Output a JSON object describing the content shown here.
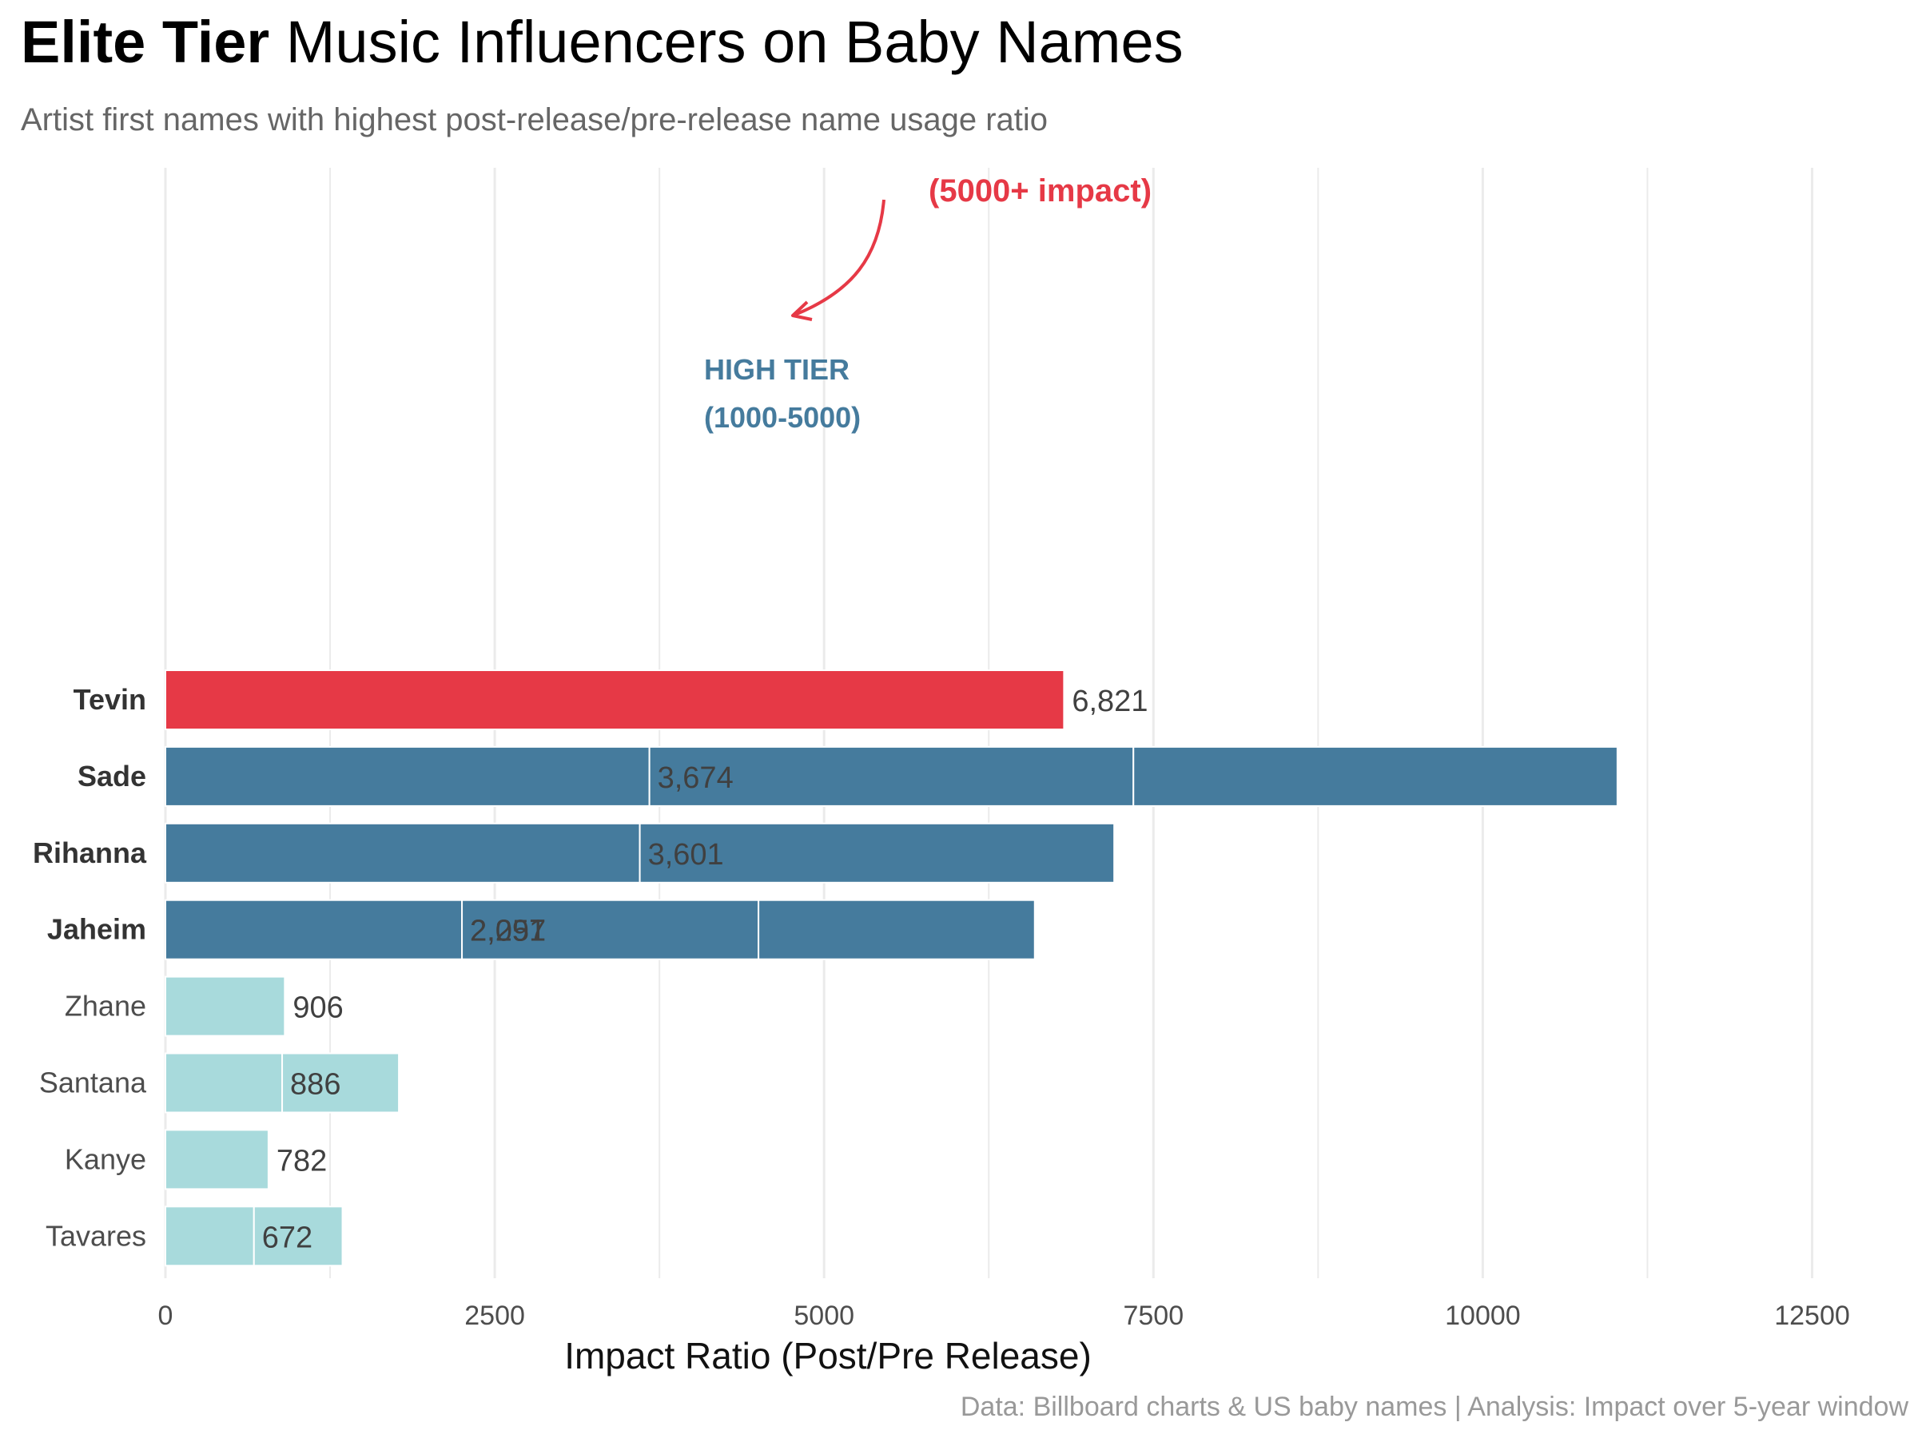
{
  "header": {
    "title_bold": "Elite Tier",
    "title_rest": " Music Influencers on Baby Names",
    "subtitle": "Artist first names with highest post-release/pre-release name usage ratio",
    "caption": "Data: Billboard charts & US baby names | Analysis: Impact over 5-year window"
  },
  "annotations": {
    "elite": "(5000+ impact)",
    "high_line1": "HIGH TIER",
    "high_line2": "(1000-5000)"
  },
  "colors": {
    "elite": "#e63946",
    "high": "#457b9d",
    "standard": "#a8dadc",
    "grid": "#ebebeb"
  },
  "chart_data": {
    "type": "bar",
    "orientation": "horizontal",
    "xlabel": "Impact Ratio (Post/Pre Release)",
    "ylabel": "",
    "xlim": [
      0,
      13000
    ],
    "xticks": [
      0,
      2500,
      5000,
      7500,
      10000,
      12500
    ],
    "grid": true,
    "categories": [
      "Tevin",
      "Sade",
      "Rihanna",
      "Jaheim",
      "Zhane",
      "Santana",
      "Kanye",
      "Tavares"
    ],
    "bars": [
      {
        "name": "Tevin",
        "tier": "elite",
        "bold": true,
        "segments": [
          6821
        ],
        "labels": [
          "6,821"
        ]
      },
      {
        "name": "Sade",
        "tier": "high",
        "bold": true,
        "segments": [
          3674,
          3674,
          3674
        ],
        "labels": [
          "3,674"
        ]
      },
      {
        "name": "Rihanna",
        "tier": "high",
        "bold": true,
        "segments": [
          3601,
          3601
        ],
        "labels": [
          "3,601"
        ]
      },
      {
        "name": "Jaheim",
        "tier": "high",
        "bold": true,
        "segments": [
          2251,
          2251,
          2097
        ],
        "labels": [
          "2,251",
          "2,097"
        ]
      },
      {
        "name": "Zhane",
        "tier": "standard",
        "bold": false,
        "segments": [
          906
        ],
        "labels": [
          "906"
        ]
      },
      {
        "name": "Santana",
        "tier": "standard",
        "bold": false,
        "segments": [
          886,
          886
        ],
        "labels": [
          "886"
        ]
      },
      {
        "name": "Kanye",
        "tier": "standard",
        "bold": false,
        "segments": [
          782
        ],
        "labels": [
          "782"
        ]
      },
      {
        "name": "Tavares",
        "tier": "standard",
        "bold": false,
        "segments": [
          672,
          672
        ],
        "labels": [
          "672"
        ]
      }
    ]
  }
}
